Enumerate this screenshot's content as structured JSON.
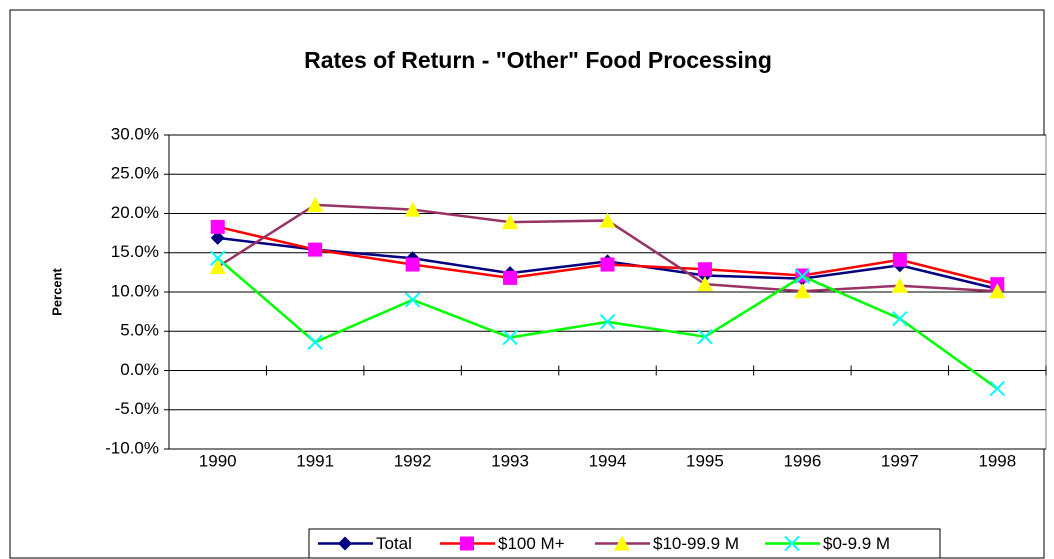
{
  "chart_data": {
    "type": "line",
    "title": "Rates of Return - \"Other\" Food Processing",
    "y_label": "Percent",
    "categories": [
      "1990",
      "1991",
      "1992",
      "1993",
      "1994",
      "1995",
      "1996",
      "1997",
      "1998"
    ],
    "series": [
      {
        "name": "Total",
        "color": "#000080",
        "marker": "diamond",
        "marker_color": "#000080",
        "values": [
          16.9,
          15.4,
          14.3,
          12.4,
          13.9,
          12.1,
          11.7,
          13.4,
          10.4
        ]
      },
      {
        "name": "$100 M+",
        "color": "#ff0000",
        "marker": "square",
        "marker_color": "#ff00ff",
        "values": [
          18.3,
          15.4,
          13.5,
          11.8,
          13.5,
          12.9,
          12.1,
          14.1,
          11.0
        ]
      },
      {
        "name": "$10-99.9 M",
        "color": "#993366",
        "marker": "triangle",
        "marker_color": "#ffff00",
        "values": [
          13.2,
          21.1,
          20.5,
          18.9,
          19.1,
          11.0,
          10.1,
          10.8,
          10.1
        ]
      },
      {
        "name": "$0-9.9 M",
        "color": "#00ff00",
        "marker": "x",
        "marker_color": "#00ffff",
        "values": [
          14.3,
          3.6,
          9.0,
          4.2,
          6.2,
          4.3,
          12.0,
          6.6,
          -2.3
        ]
      }
    ],
    "ylim": [
      -10,
      30
    ],
    "yticks": [
      {
        "value": -10,
        "label": "-10.0%"
      },
      {
        "value": -5,
        "label": "-5.0%"
      },
      {
        "value": 0,
        "label": "0.0%"
      },
      {
        "value": 5,
        "label": "5.0%"
      },
      {
        "value": 10,
        "label": "10.0%"
      },
      {
        "value": 15,
        "label": "15.0%"
      },
      {
        "value": 20,
        "label": "20.0%"
      },
      {
        "value": 25,
        "label": "25.0%"
      },
      {
        "value": 30,
        "label": "30.0%"
      }
    ],
    "grid": true,
    "legend": "bottom"
  }
}
